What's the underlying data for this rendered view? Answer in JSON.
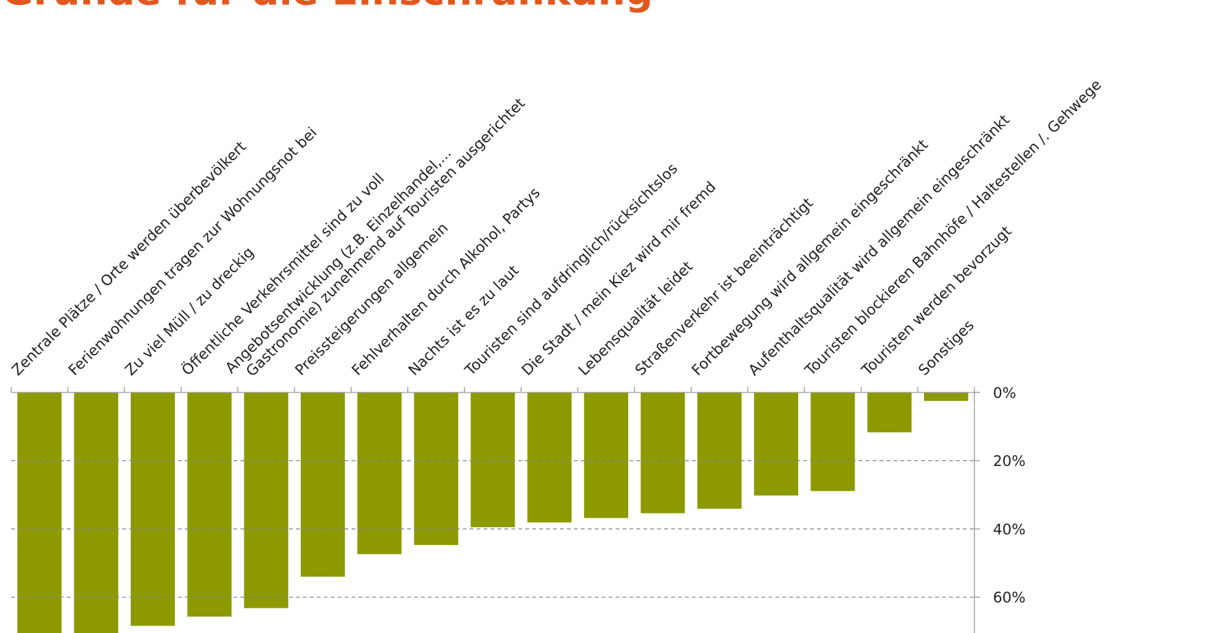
{
  "chart_data": {
    "type": "bar",
    "title": "Gründe für die Einschränkung",
    "categories": [
      "Zentrale Plätze / Orte werden überbevölkert",
      "Ferienwohnungen tragen zur Wohnungsnot bei",
      "Zu viel Müll / zu dreckig",
      "Öffentliche Verkehrsmittel sind zu voll",
      [
        "Angebotsentwicklung (z.B. Einzelhandel,...",
        "Gastronomie) zunehmend auf Touristen ausgerichtet"
      ],
      "Preissteigerungen allgemein",
      "Fehlverhalten durch Alkohol, Partys",
      "Nachts ist es zu laut",
      "Touristen sind aufdringlich/rücksichtslos",
      "Die Stadt / mein Kiez wird mir fremd",
      "Lebensqualität leidet",
      "Straßenverkehr ist beeinträchtigt",
      "Fortbewegung wird allgemein eingeschränkt",
      "Aufenthaltsqualität wird allgemein eingeschränkt",
      "Touristen blockieren Bahnhöfe / Haltestellen /. Gehwege",
      "Touristen werden bevorzugt",
      "Sonstiges"
    ],
    "values": [
      72,
      72,
      68.4,
      65.7,
      63.2,
      54,
      47.4,
      44.7,
      39.5,
      38.1,
      36.8,
      35.4,
      34.1,
      30.2,
      28.9,
      11.7,
      2.5
    ],
    "color": "#8c9a00",
    "y_inverted": true,
    "y_axis_side": "right",
    "ylim": [
      0,
      70.5
    ],
    "yticks": [
      {
        "value": 0,
        "label": "0%"
      },
      {
        "value": 20,
        "label": "20%"
      },
      {
        "value": 40,
        "label": "40%"
      },
      {
        "value": 60,
        "label": "60%"
      }
    ],
    "grid": true
  }
}
